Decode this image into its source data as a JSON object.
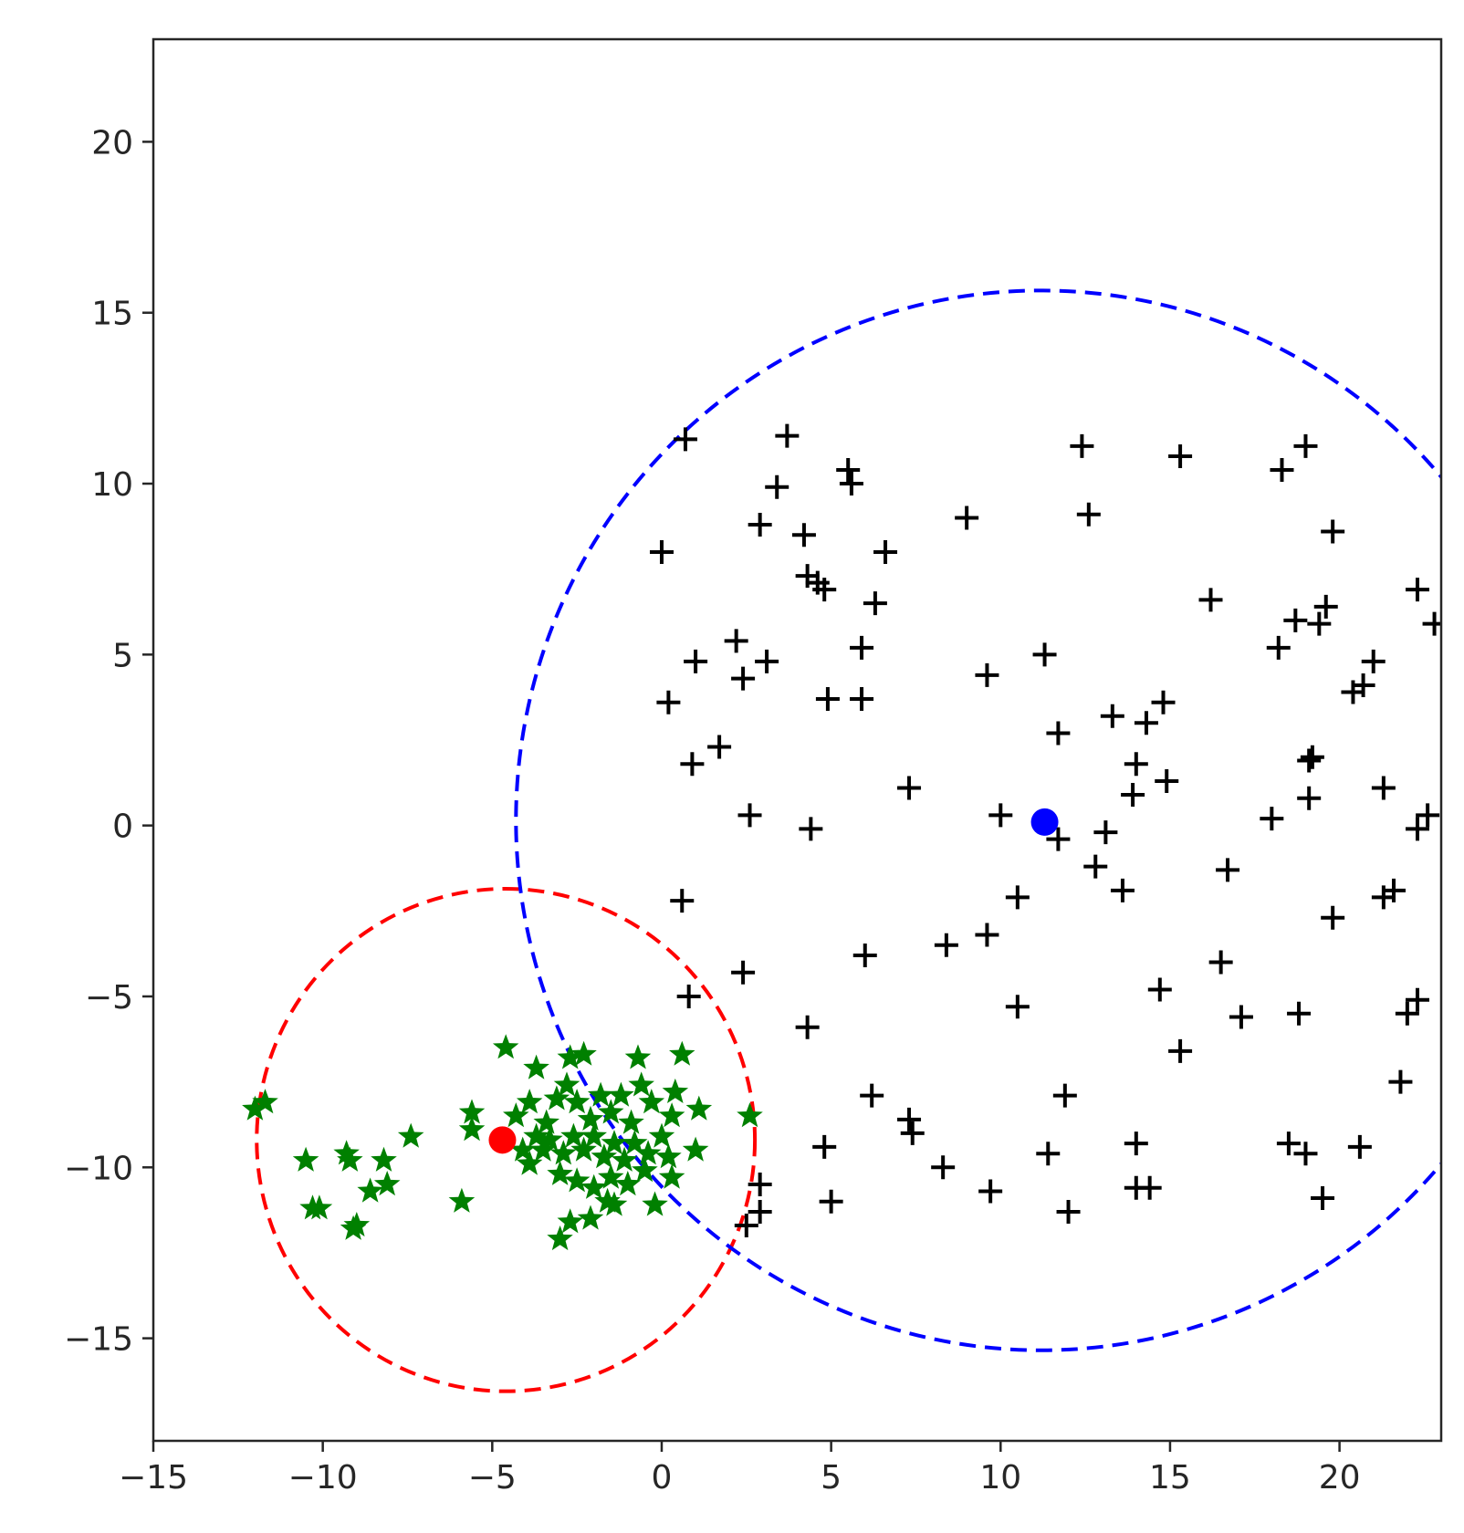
{
  "chart_data": {
    "type": "scatter",
    "title": "",
    "xlabel": "",
    "ylabel": "",
    "xlim": [
      -15,
      23
    ],
    "ylim": [
      -18,
      23
    ],
    "xticks": [
      -15,
      -10,
      -5,
      0,
      5,
      10,
      15,
      20
    ],
    "yticks": [
      -15,
      -10,
      -5,
      0,
      5,
      10,
      15,
      20
    ],
    "xtick_labels": [
      "−15",
      "−10",
      "−5",
      "0",
      "5",
      "10",
      "15",
      "20"
    ],
    "ytick_labels": [
      "−15",
      "−10",
      "−5",
      "0",
      "5",
      "10",
      "15",
      "20"
    ],
    "grid": false,
    "series": [
      {
        "marker": "plus",
        "color": "#000000",
        "points": [
          [
            0.7,
            11.3
          ],
          [
            3.7,
            11.4
          ],
          [
            5.5,
            10.4
          ],
          [
            5.6,
            10.0
          ],
          [
            3.4,
            9.9
          ],
          [
            2.9,
            8.8
          ],
          [
            4.2,
            8.5
          ],
          [
            0,
            8.0
          ],
          [
            6.6,
            8.0
          ],
          [
            9.0,
            9.0
          ],
          [
            12.4,
            11.1
          ],
          [
            15.3,
            10.8
          ],
          [
            12.6,
            9.1
          ],
          [
            19.0,
            11.1
          ],
          [
            18.3,
            10.4
          ],
          [
            19.8,
            8.6
          ],
          [
            4.3,
            7.3
          ],
          [
            4.6,
            7.1
          ],
          [
            4.8,
            6.9
          ],
          [
            6.3,
            6.5
          ],
          [
            16.2,
            6.6
          ],
          [
            18.7,
            6.0
          ],
          [
            19.4,
            5.9
          ],
          [
            19.6,
            6.4
          ],
          [
            22.3,
            6.9
          ],
          [
            22.8,
            5.9
          ],
          [
            2.2,
            5.4
          ],
          [
            3.1,
            4.8
          ],
          [
            1.0,
            4.8
          ],
          [
            2.4,
            4.3
          ],
          [
            5.9,
            5.2
          ],
          [
            9.6,
            4.4
          ],
          [
            11.3,
            5.0
          ],
          [
            18.2,
            5.2
          ],
          [
            21.0,
            4.8
          ],
          [
            20.7,
            4.1
          ],
          [
            20.4,
            3.9
          ],
          [
            0.2,
            3.6
          ],
          [
            4.9,
            3.7
          ],
          [
            5.9,
            3.7
          ],
          [
            13.3,
            3.2
          ],
          [
            14.3,
            3.0
          ],
          [
            14.8,
            3.6
          ],
          [
            11.7,
            2.7
          ],
          [
            1.7,
            2.3
          ],
          [
            0.9,
            1.8
          ],
          [
            14.0,
            1.8
          ],
          [
            19.1,
            1.9
          ],
          [
            19.2,
            2.0
          ],
          [
            7.3,
            1.1
          ],
          [
            13.9,
            0.9
          ],
          [
            14.9,
            1.3
          ],
          [
            19.1,
            0.8
          ],
          [
            21.3,
            1.1
          ],
          [
            2.6,
            0.3
          ],
          [
            4.4,
            -0.1
          ],
          [
            10.0,
            0.3
          ],
          [
            11.7,
            -0.4
          ],
          [
            13.1,
            -0.2
          ],
          [
            18.0,
            0.2
          ],
          [
            22.3,
            -0.1
          ],
          [
            22.6,
            0.3
          ],
          [
            12.8,
            -1.2
          ],
          [
            13.6,
            -1.9
          ],
          [
            16.7,
            -1.3
          ],
          [
            10.5,
            -2.1
          ],
          [
            21.3,
            -2.1
          ],
          [
            21.6,
            -1.9
          ],
          [
            0.6,
            -2.2
          ],
          [
            19.8,
            -2.7
          ],
          [
            9.6,
            -3.2
          ],
          [
            8.4,
            -3.5
          ],
          [
            6.0,
            -3.8
          ],
          [
            16.5,
            -4.0
          ],
          [
            2.4,
            -4.3
          ],
          [
            0.8,
            -5.0
          ],
          [
            10.5,
            -5.3
          ],
          [
            14.7,
            -4.8
          ],
          [
            17.1,
            -5.6
          ],
          [
            18.8,
            -5.5
          ],
          [
            22.0,
            -5.5
          ],
          [
            22.3,
            -5.1
          ],
          [
            4.3,
            -5.9
          ],
          [
            15.3,
            -6.6
          ],
          [
            21.8,
            -7.5
          ],
          [
            6.2,
            -7.9
          ],
          [
            11.9,
            -7.9
          ],
          [
            7.3,
            -8.6
          ],
          [
            7.4,
            -9.0
          ],
          [
            4.8,
            -9.4
          ],
          [
            11.4,
            -9.6
          ],
          [
            14.0,
            -9.3
          ],
          [
            18.5,
            -9.3
          ],
          [
            19.0,
            -9.6
          ],
          [
            20.6,
            -9.4
          ],
          [
            8.3,
            -10.0
          ],
          [
            2.9,
            -10.5
          ],
          [
            5.0,
            -11.0
          ],
          [
            9.7,
            -10.7
          ],
          [
            14.0,
            -10.6
          ],
          [
            14.4,
            -10.6
          ],
          [
            19.5,
            -10.9
          ],
          [
            2.9,
            -11.3
          ],
          [
            2.5,
            -11.7
          ],
          [
            12.0,
            -11.3
          ]
        ]
      },
      {
        "marker": "star",
        "color": "#008000",
        "points": [
          [
            -11.7,
            -8.1
          ],
          [
            -12.0,
            -8.3
          ],
          [
            -10.5,
            -9.8
          ],
          [
            -9.3,
            -9.6
          ],
          [
            -9.2,
            -9.8
          ],
          [
            -8.2,
            -9.8
          ],
          [
            -8.1,
            -10.5
          ],
          [
            -8.6,
            -10.7
          ],
          [
            -7.4,
            -9.1
          ],
          [
            -10.3,
            -11.2
          ],
          [
            -10.1,
            -11.2
          ],
          [
            -9.1,
            -11.8
          ],
          [
            -9.0,
            -11.7
          ],
          [
            -5.9,
            -11.0
          ],
          [
            -5.6,
            -8.4
          ],
          [
            -5.6,
            -8.9
          ],
          [
            -4.6,
            -6.5
          ],
          [
            -3.7,
            -7.1
          ],
          [
            -2.7,
            -6.8
          ],
          [
            -2.3,
            -6.7
          ],
          [
            -0.7,
            -6.8
          ],
          [
            0.6,
            -6.7
          ],
          [
            -3.9,
            -8.1
          ],
          [
            -4.3,
            -8.5
          ],
          [
            -4.1,
            -9.5
          ],
          [
            -3.7,
            -9.1
          ],
          [
            -3.4,
            -8.7
          ],
          [
            -3.1,
            -8.0
          ],
          [
            -2.8,
            -7.6
          ],
          [
            -2.5,
            -8.1
          ],
          [
            -2.1,
            -8.6
          ],
          [
            -1.8,
            -7.9
          ],
          [
            -1.5,
            -8.4
          ],
          [
            -1.2,
            -7.9
          ],
          [
            -0.9,
            -8.7
          ],
          [
            -0.6,
            -7.6
          ],
          [
            -0.3,
            -8.1
          ],
          [
            0.3,
            -8.5
          ],
          [
            0.4,
            -7.8
          ],
          [
            1.1,
            -8.3
          ],
          [
            -3.3,
            -9.2
          ],
          [
            -2.9,
            -9.6
          ],
          [
            -2.6,
            -9.1
          ],
          [
            -2.3,
            -9.5
          ],
          [
            -2.0,
            -9.1
          ],
          [
            -1.7,
            -9.7
          ],
          [
            -1.4,
            -9.3
          ],
          [
            -1.1,
            -9.8
          ],
          [
            -0.8,
            -9.3
          ],
          [
            -0.4,
            -9.6
          ],
          [
            0.0,
            -9.1
          ],
          [
            0.2,
            -9.7
          ],
          [
            1.0,
            -9.5
          ],
          [
            -3.0,
            -10.2
          ],
          [
            -2.5,
            -10.4
          ],
          [
            -2.0,
            -10.6
          ],
          [
            -1.5,
            -10.3
          ],
          [
            -1.0,
            -10.5
          ],
          [
            -0.5,
            -10.1
          ],
          [
            0.3,
            -10.3
          ],
          [
            -1.6,
            -11.0
          ],
          [
            -2.1,
            -11.5
          ],
          [
            -2.7,
            -11.6
          ],
          [
            -3.0,
            -12.1
          ],
          [
            -1.4,
            -11.1
          ],
          [
            -0.2,
            -11.1
          ],
          [
            2.6,
            -8.5
          ],
          [
            -3.9,
            -9.9
          ],
          [
            -3.5,
            -9.5
          ]
        ]
      }
    ],
    "centers": [
      {
        "x": -4.7,
        "y": -9.2,
        "color": "#ff0000"
      },
      {
        "x": 11.3,
        "y": 0.1,
        "color": "#0000ff"
      }
    ],
    "circles": [
      {
        "cx": -4.6,
        "cy": -9.2,
        "r": 7.35,
        "color": "#ff0000",
        "style": "dashed"
      },
      {
        "cx": 11.2,
        "cy": 0.15,
        "r": 15.5,
        "color": "#0000ff",
        "style": "dashed"
      }
    ]
  }
}
